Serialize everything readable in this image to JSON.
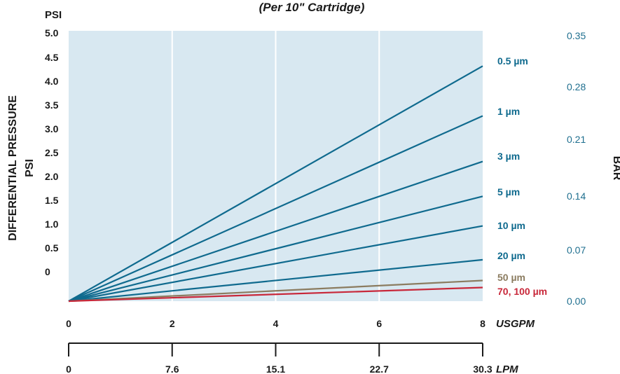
{
  "chart_data": {
    "type": "line",
    "subtitle": "(Per 10\" Cartridge)",
    "y_unit_top": "PSI",
    "ylabel_main": "DIFFERENTIAL PRESSURE",
    "ylabel_sub": "PSI",
    "y2label": "BAR",
    "x_unit": "USGPM",
    "x2_unit": "LPM",
    "xlim": [
      0,
      8
    ],
    "x_ticks": [
      "0",
      "2",
      "4",
      "6",
      "8"
    ],
    "x2_ticks": [
      "0",
      "7.6",
      "15.1",
      "22.7",
      "30.3"
    ],
    "y_ticks": [
      "5.0",
      "4.5",
      "4.0",
      "3.5",
      "3.0",
      "2.5",
      "2.0",
      "1.5",
      "1.0",
      "0.5",
      "0"
    ],
    "y2_ticks": [
      "0.35",
      "0.28",
      "0.21",
      "0.14",
      "0.07",
      "0.00"
    ],
    "grid": true,
    "colors": {
      "plot_bg": "#d8e8f1",
      "grid": "#ffffff",
      "blue": "#0f6a8e",
      "tan": "#8b7c60",
      "red": "#c8283a",
      "axis_text": "#1a1a1a",
      "bar_text": "#1f6f8f"
    },
    "series": [
      {
        "name": "0.5 µm",
        "x": [
          0,
          8
        ],
        "y": [
          0,
          5.0
        ],
        "color": "#0f6a8e"
      },
      {
        "name": "1 µm",
        "x": [
          0,
          8
        ],
        "y": [
          0,
          3.94
        ],
        "color": "#0f6a8e"
      },
      {
        "name": "3 µm",
        "x": [
          0,
          8
        ],
        "y": [
          0,
          2.97
        ],
        "color": "#0f6a8e"
      },
      {
        "name": "5 µm",
        "x": [
          0,
          8
        ],
        "y": [
          0,
          2.23
        ],
        "color": "#0f6a8e"
      },
      {
        "name": "10 µm",
        "x": [
          0,
          8
        ],
        "y": [
          0,
          1.6
        ],
        "color": "#0f6a8e"
      },
      {
        "name": "20 µm",
        "x": [
          0,
          8
        ],
        "y": [
          0,
          0.88
        ],
        "color": "#0f6a8e"
      },
      {
        "name": "50 µm",
        "x": [
          0,
          8
        ],
        "y": [
          0,
          0.44
        ],
        "color": "#8b7c60"
      },
      {
        "name": "70, 100 µm",
        "x": [
          0,
          8
        ],
        "y": [
          0,
          0.29
        ],
        "color": "#c8283a"
      }
    ]
  }
}
